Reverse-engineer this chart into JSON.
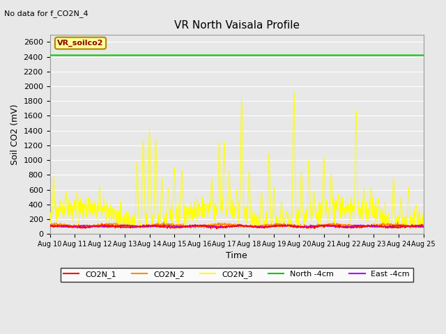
{
  "title": "VR North Vaisala Profile",
  "no_data_text": "No data for f_CO2N_4",
  "xlabel": "Time",
  "ylabel": "Soil CO2 (mV)",
  "ylim": [
    0,
    2700
  ],
  "yticks": [
    0,
    200,
    400,
    600,
    800,
    1000,
    1200,
    1400,
    1600,
    1800,
    2000,
    2200,
    2400,
    2600
  ],
  "x_tick_labels": [
    "Aug 10",
    "Aug 11",
    "Aug 12",
    "Aug 13",
    "Aug 14",
    "Aug 15",
    "Aug 16",
    "Aug 17",
    "Aug 18",
    "Aug 19",
    "Aug 20",
    "Aug 21",
    "Aug 22",
    "Aug 23",
    "Aug 24",
    "Aug 25"
  ],
  "north_4cm_value": 2420,
  "background_color": "#e8e8e8",
  "plot_bg_color": "#e8e8e8",
  "colors": {
    "CO2N_1": "#ff0000",
    "CO2N_2": "#ff8800",
    "CO2N_3": "#ffff00",
    "North_4cm": "#00cc00",
    "East_4cm": "#aa00ff"
  },
  "legend_labels": [
    "CO2N_1",
    "CO2N_2",
    "CO2N_3",
    "North -4cm",
    "East -4cm"
  ],
  "annotation_box": "VR_soilco2",
  "annotation_box_bg": "#ffff99",
  "annotation_box_border": "#aa8800"
}
